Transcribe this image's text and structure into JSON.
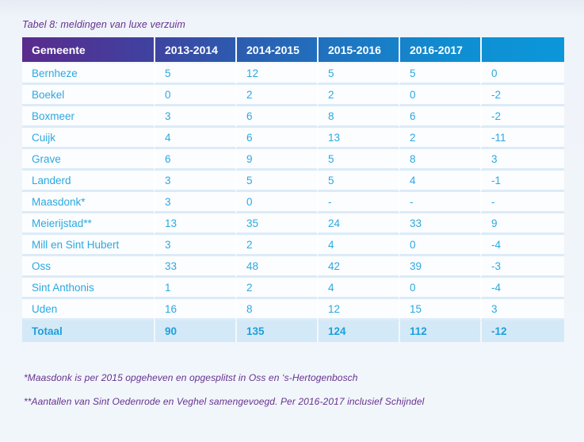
{
  "title": "Tabel 8: meldingen van luxe verzuim",
  "colors": {
    "header_gradient_start": "#5a2b8d",
    "header_gradient_end": "#0b97da",
    "cell_text": "#2ca8e0",
    "title_text": "#67308f",
    "total_row_bg": "#d4e9f7",
    "row_separator": "#dcebf7",
    "page_bg": "#eff4fa"
  },
  "table": {
    "columns": [
      "Gemeente",
      "2013-2014",
      "2014-2015",
      "2015-2016",
      "2016-2017",
      ""
    ],
    "rows": [
      {
        "gemeente": "Bernheze",
        "values": [
          "5",
          "12",
          "5",
          "5",
          "0"
        ],
        "is_total": false
      },
      {
        "gemeente": "Boekel",
        "values": [
          "0",
          "2",
          "2",
          "0",
          "-2"
        ],
        "is_total": false
      },
      {
        "gemeente": "Boxmeer",
        "values": [
          "3",
          "6",
          "8",
          "6",
          "-2"
        ],
        "is_total": false
      },
      {
        "gemeente": "Cuijk",
        "values": [
          "4",
          "6",
          "13",
          "2",
          "-11"
        ],
        "is_total": false
      },
      {
        "gemeente": "Grave",
        "values": [
          "6",
          "9",
          "5",
          "8",
          "3"
        ],
        "is_total": false
      },
      {
        "gemeente": "Landerd",
        "values": [
          "3",
          "5",
          "5",
          "4",
          "-1"
        ],
        "is_total": false
      },
      {
        "gemeente": "Maasdonk*",
        "values": [
          "3",
          "0",
          "-",
          "-",
          "-"
        ],
        "is_total": false
      },
      {
        "gemeente": "Meierijstad**",
        "values": [
          "13",
          "35",
          "24",
          "33",
          "9"
        ],
        "is_total": false
      },
      {
        "gemeente": "Mill en Sint Hubert",
        "values": [
          "3",
          "2",
          "4",
          "0",
          "-4"
        ],
        "is_total": false
      },
      {
        "gemeente": "Oss",
        "values": [
          "33",
          "48",
          "42",
          "39",
          "-3"
        ],
        "is_total": false
      },
      {
        "gemeente": "Sint Anthonis",
        "values": [
          "1",
          "2",
          "4",
          "0",
          "-4"
        ],
        "is_total": false
      },
      {
        "gemeente": "Uden",
        "values": [
          "16",
          "8",
          "12",
          "15",
          "3"
        ],
        "is_total": false
      },
      {
        "gemeente": "Totaal",
        "values": [
          "90",
          "135",
          "124",
          "112",
          "-12"
        ],
        "is_total": true
      }
    ]
  },
  "footnotes": [
    "*Maasdonk is per 2015 opgeheven en opgesplitst in Oss en ‘s-Hertogenbosch",
    "**Aantallen van Sint Oedenrode en Veghel samengevoegd. Per 2016-2017 inclusief Schijndel"
  ]
}
